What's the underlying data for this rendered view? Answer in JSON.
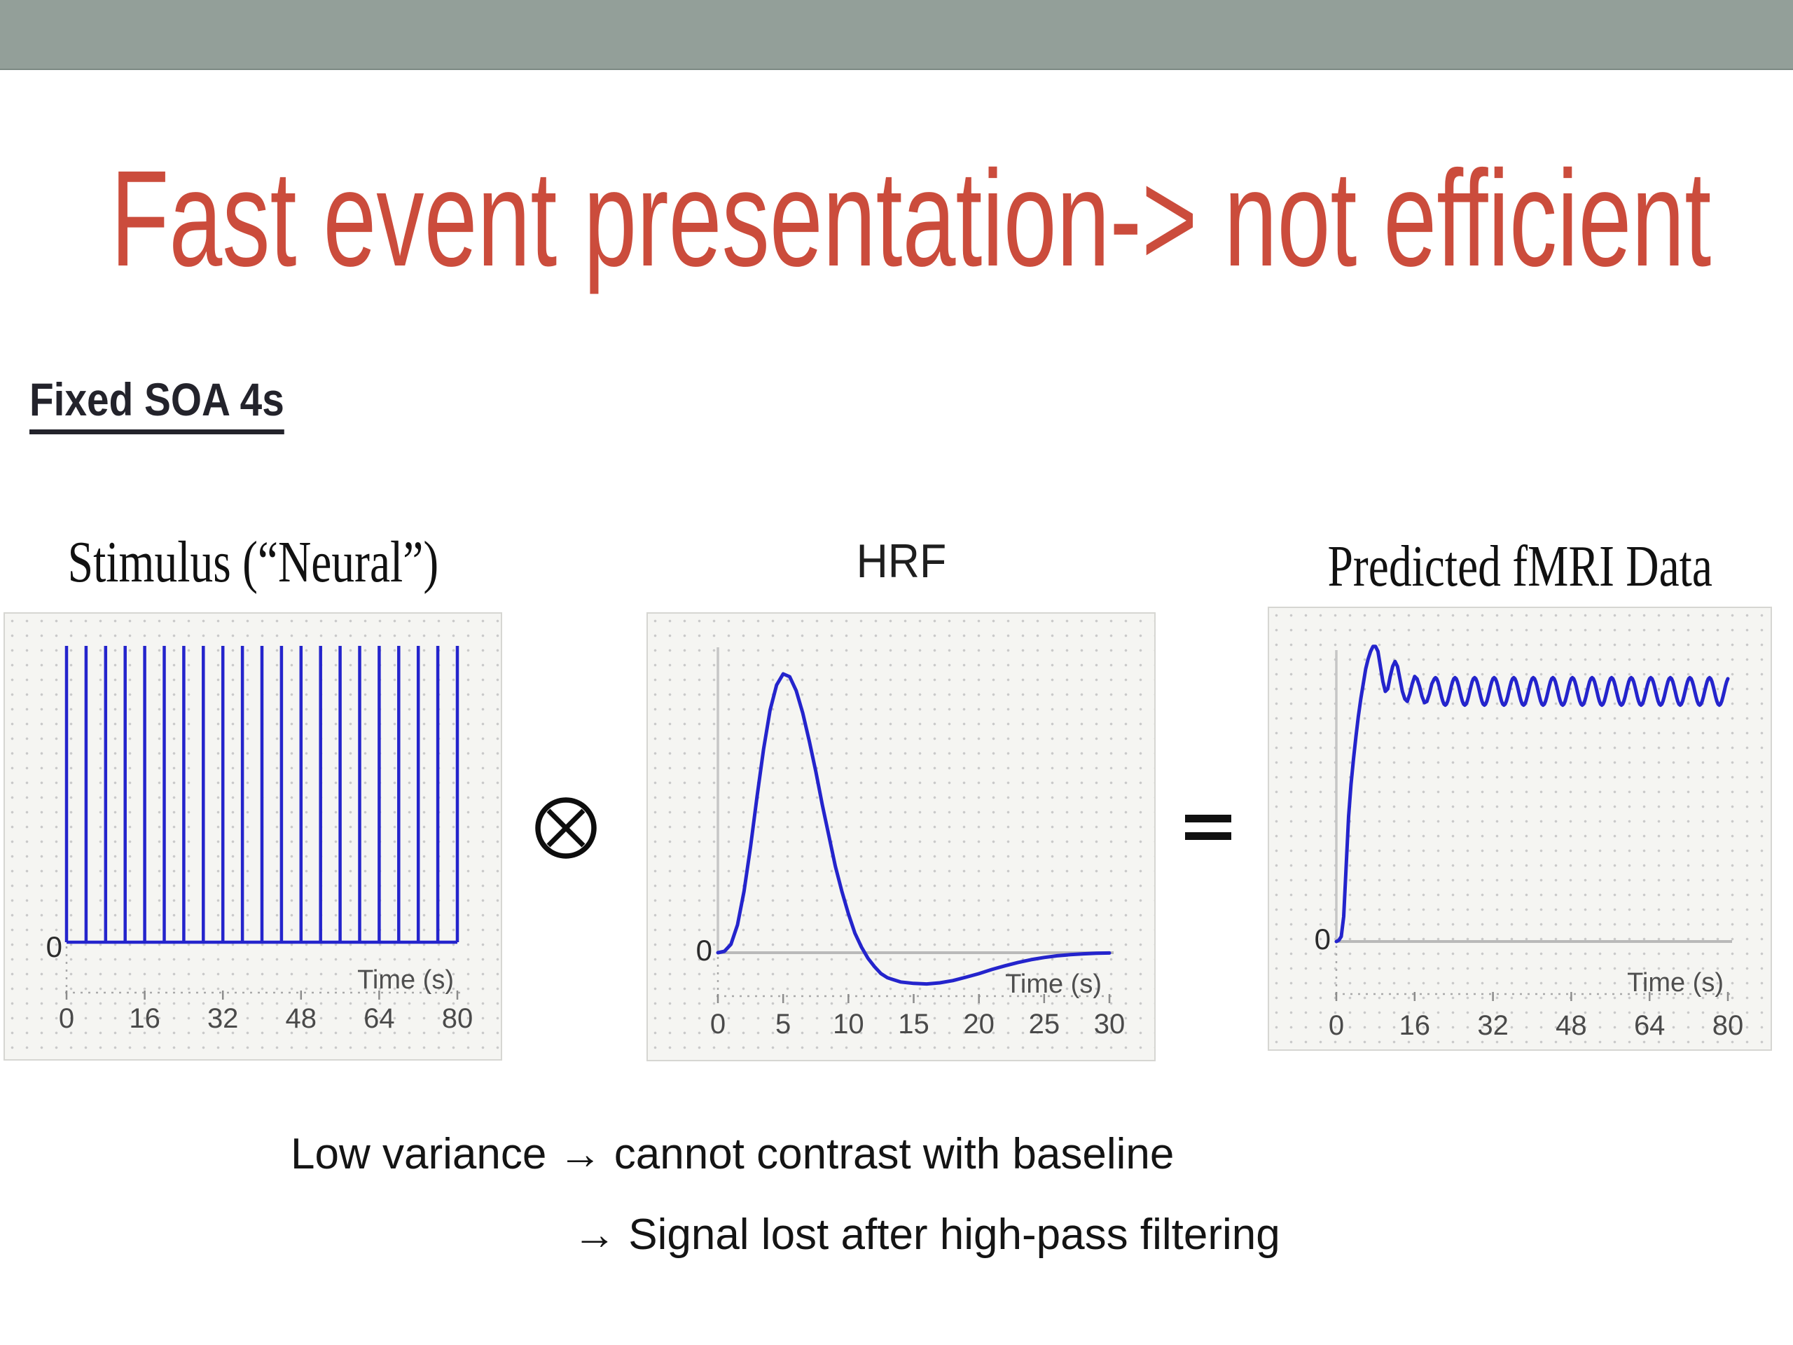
{
  "slide": {
    "title": "Fast event presentation-> not efficient",
    "title_color": "#CB4C3C",
    "top_band_color": "#939F99",
    "section_label": "Fixed SOA 4s",
    "operators": {
      "convolution": "⊗",
      "equals": "="
    },
    "footer_lines": [
      "Low variance → cannot contrast with baseline",
      "→ Signal lost after high-pass filtering"
    ]
  },
  "colors": {
    "curve_blue": "#2424CC",
    "baseline_gray": "#b9b9b9",
    "axis_gray": "#a9a9a9",
    "tick_gray": "#8c8c8c",
    "yaxis_gray": "#c6c6c6"
  },
  "chart_data": [
    {
      "id": "stimulus",
      "type": "impulse-train",
      "title": "Stimulus (“Neural”)",
      "xlabel": "Time (s)",
      "y_zero_label": "0",
      "x_range": [
        0,
        80
      ],
      "soa_s": 4,
      "spike_height": 1,
      "spike_times": [
        0,
        4,
        8,
        12,
        16,
        20,
        24,
        28,
        32,
        36,
        40,
        44,
        48,
        52,
        56,
        60,
        64,
        68,
        72,
        76,
        80
      ],
      "xticks": [
        0,
        16,
        32,
        48,
        64,
        80
      ],
      "line_color": "#2424CC"
    },
    {
      "id": "hrf",
      "type": "line",
      "title": "HRF",
      "xlabel": "Time (s)",
      "y_zero_label": "0",
      "x_range": [
        0,
        30
      ],
      "xticks": [
        0,
        5,
        10,
        15,
        20,
        25,
        30
      ],
      "peak_t": 5,
      "undershoot_t": 16,
      "points": [
        [
          0,
          0
        ],
        [
          0.5,
          0.005
        ],
        [
          1,
          0.03
        ],
        [
          1.5,
          0.1
        ],
        [
          2,
          0.22
        ],
        [
          2.5,
          0.38
        ],
        [
          3,
          0.56
        ],
        [
          3.5,
          0.73
        ],
        [
          4,
          0.87
        ],
        [
          4.5,
          0.96
        ],
        [
          5,
          1.0
        ],
        [
          5.5,
          0.99
        ],
        [
          6,
          0.94
        ],
        [
          6.5,
          0.86
        ],
        [
          7,
          0.76
        ],
        [
          7.5,
          0.65
        ],
        [
          8,
          0.53
        ],
        [
          8.5,
          0.42
        ],
        [
          9,
          0.31
        ],
        [
          9.5,
          0.22
        ],
        [
          10,
          0.14
        ],
        [
          10.5,
          0.07
        ],
        [
          11,
          0.02
        ],
        [
          11.5,
          -0.02
        ],
        [
          12,
          -0.05
        ],
        [
          12.5,
          -0.075
        ],
        [
          13,
          -0.09
        ],
        [
          14,
          -0.105
        ],
        [
          15,
          -0.11
        ],
        [
          16,
          -0.112
        ],
        [
          17,
          -0.108
        ],
        [
          18,
          -0.1
        ],
        [
          19,
          -0.088
        ],
        [
          20,
          -0.075
        ],
        [
          21,
          -0.06
        ],
        [
          22,
          -0.047
        ],
        [
          23,
          -0.035
        ],
        [
          24,
          -0.025
        ],
        [
          25,
          -0.017
        ],
        [
          26,
          -0.011
        ],
        [
          27,
          -0.007
        ],
        [
          28,
          -0.004
        ],
        [
          29,
          -0.002
        ],
        [
          30,
          -0.001
        ]
      ],
      "line_color": "#2424CC"
    },
    {
      "id": "predicted",
      "type": "line",
      "title": "Predicted fMRI Data",
      "xlabel": "Time (s)",
      "y_zero_label": "0",
      "x_range": [
        0,
        80
      ],
      "xticks": [
        0,
        16,
        32,
        48,
        64,
        80
      ],
      "transient_points": [
        [
          0,
          0
        ],
        [
          0.5,
          0.005
        ],
        [
          1,
          0.02
        ],
        [
          1.5,
          0.1
        ],
        [
          2,
          0.3
        ],
        [
          2.5,
          0.5
        ],
        [
          3,
          0.63
        ],
        [
          3.5,
          0.73
        ],
        [
          4,
          0.82
        ],
        [
          4.5,
          0.9
        ],
        [
          5,
          0.97
        ],
        [
          5.5,
          1.03
        ],
        [
          6,
          1.09
        ],
        [
          6.5,
          1.13
        ],
        [
          7,
          1.16
        ],
        [
          7.5,
          1.18
        ],
        [
          8,
          1.18
        ],
        [
          8.5,
          1.16
        ],
        [
          9,
          1.1
        ],
        [
          9.5,
          1.04
        ],
        [
          10,
          1.0
        ],
        [
          10.5,
          1.01
        ],
        [
          11,
          1.06
        ],
        [
          11.5,
          1.1
        ],
        [
          12,
          1.12
        ],
        [
          12.5,
          1.1
        ],
        [
          13,
          1.05
        ],
        [
          13.5,
          1.0
        ],
        [
          14,
          0.97
        ],
        [
          14.5,
          0.96
        ],
        [
          15,
          0.99
        ],
        [
          15.5,
          1.03
        ],
        [
          16,
          1.06
        ],
        [
          16.5,
          1.05
        ],
        [
          17,
          1.02
        ],
        [
          17.5,
          0.98
        ],
        [
          18,
          0.955
        ],
        [
          18.5,
          0.96
        ],
        [
          19,
          0.99
        ],
        [
          19.5,
          1.03
        ],
        [
          20,
          1.05
        ]
      ],
      "steady_state": {
        "mean": 1.0,
        "amplitude": 0.055,
        "period_s": 4,
        "crest_t": 20.25,
        "t_end": 80
      },
      "line_color": "#2424CC"
    }
  ]
}
